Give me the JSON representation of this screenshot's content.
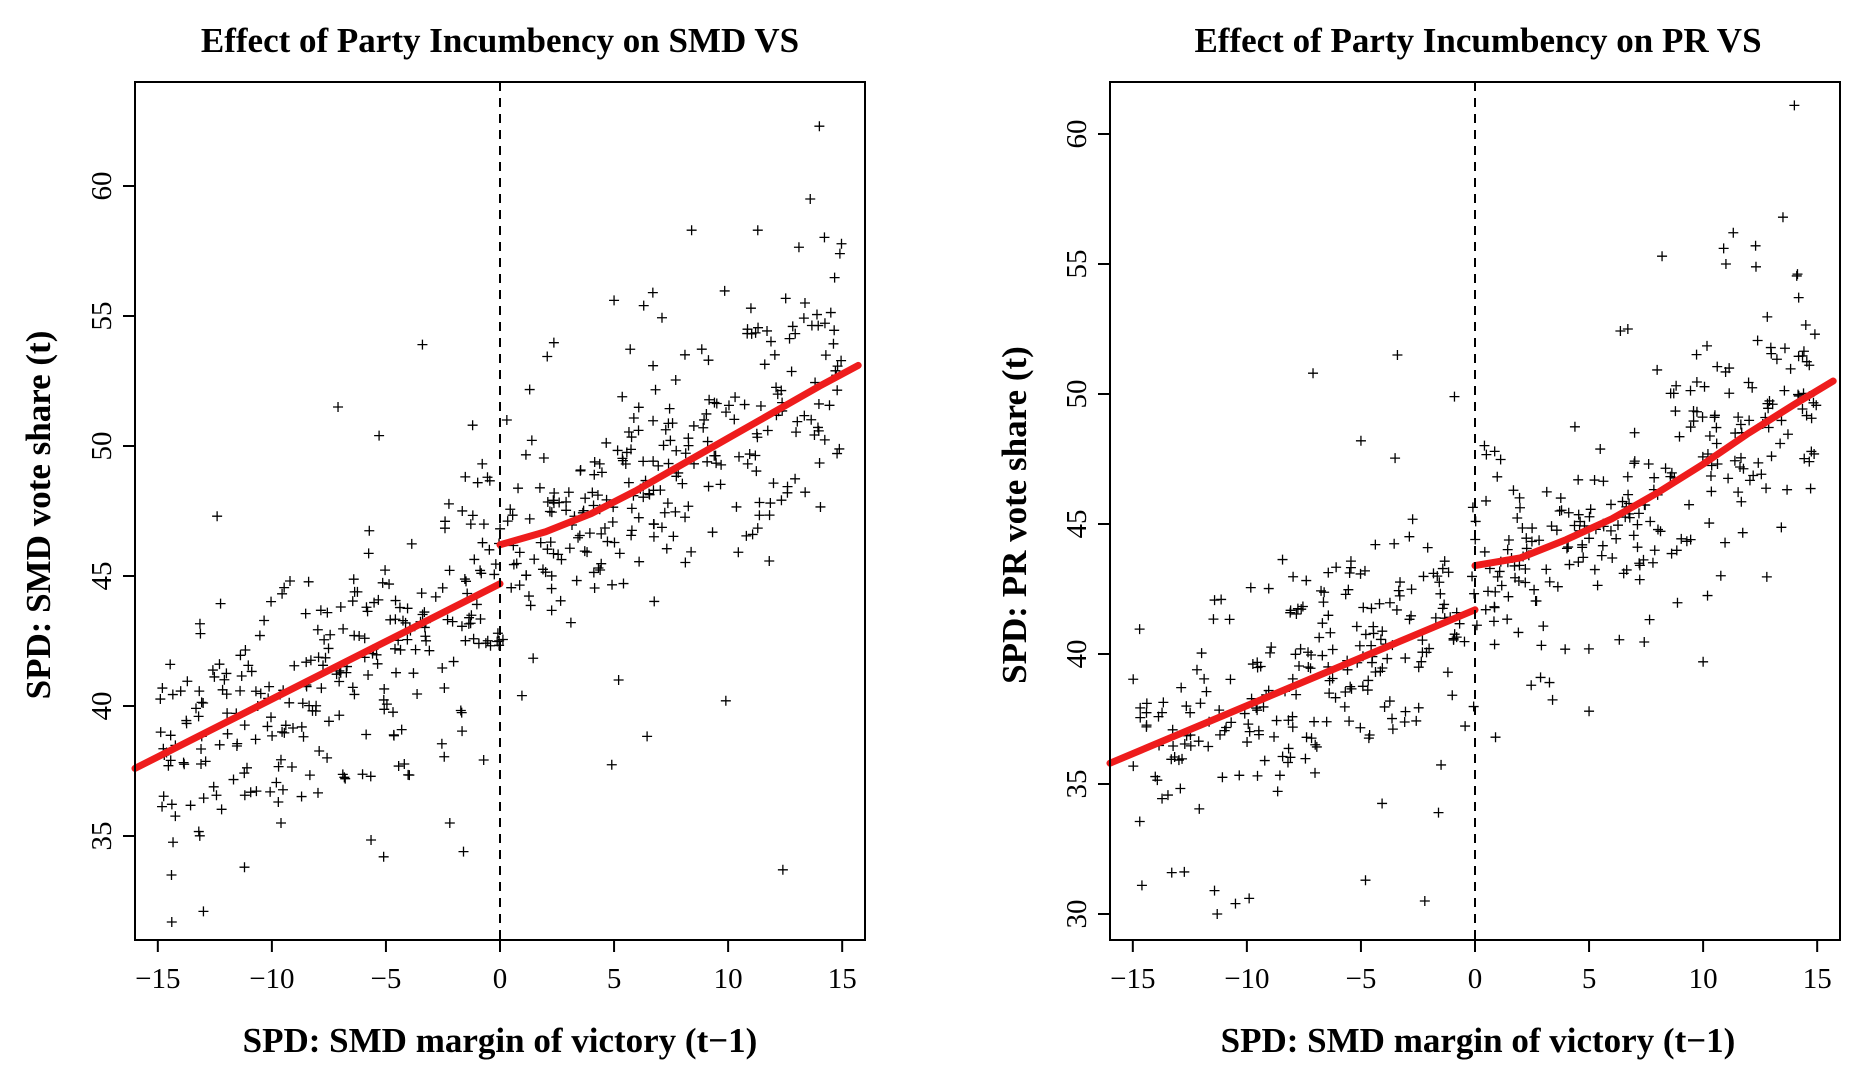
{
  "chart_data": [
    {
      "type": "scatter",
      "title": "Effect of Party Incumbency on SMD VS",
      "xlabel": "SPD: SMD margin of victory (t−1)",
      "ylabel": "SPD: SMD vote share (t)",
      "xlim": [
        -16,
        16
      ],
      "ylim": [
        31,
        64
      ],
      "xticks": [
        -15,
        -10,
        -5,
        0,
        5,
        10,
        15
      ],
      "xtick_labels": [
        "−15",
        "−10",
        "−5",
        "0",
        "5",
        "10",
        "15"
      ],
      "yticks": [
        35,
        40,
        45,
        50,
        55,
        60
      ],
      "ytick_labels": [
        "35",
        "40",
        "45",
        "50",
        "55",
        "60"
      ],
      "cutoff": 0,
      "marker_color": "#000000",
      "fit_color": "#ee1c1c",
      "fit_left": {
        "x": [
          -16,
          0
        ],
        "y": [
          37.6,
          44.7
        ]
      },
      "fit_right": {
        "x": [
          0,
          2,
          4,
          6,
          8,
          10,
          12,
          14,
          15.7
        ],
        "y": [
          46.2,
          46.7,
          47.4,
          48.3,
          49.3,
          50.3,
          51.3,
          52.3,
          53.1
        ]
      },
      "highlights": {
        "x": [
          -14.4,
          -13.0,
          -12.4,
          -11.2,
          -9.6,
          -7.1,
          -5.3,
          -5.1,
          -3.4,
          -2.2,
          -1.6,
          -1.2,
          0.3,
          5.0,
          5.2,
          6.3,
          6.7,
          8.4,
          9.9,
          11.0,
          11.3,
          12.4,
          12.6,
          13.6,
          14.0,
          14.9
        ],
        "y": [
          33.5,
          32.1,
          47.3,
          33.8,
          35.5,
          51.5,
          50.4,
          34.2,
          53.9,
          35.5,
          34.4,
          50.8,
          51.0,
          55.6,
          41.0,
          55.4,
          55.9,
          58.3,
          40.2,
          55.3,
          58.3,
          33.7,
          48.2,
          59.5,
          62.3,
          57.4
        ]
      },
      "points": {
        "n": 520,
        "seed": 12345,
        "xmin": -15,
        "xmax": 15,
        "y_sd": 2.4
      }
    },
    {
      "type": "scatter",
      "title": "Effect of Party Incumbency on PR VS",
      "xlabel": "SPD: SMD margin of victory (t−1)",
      "ylabel": "SPD: PR vote share (t)",
      "xlim": [
        -16,
        16
      ],
      "ylim": [
        29,
        62
      ],
      "xticks": [
        -15,
        -10,
        -5,
        0,
        5,
        10,
        15
      ],
      "xtick_labels": [
        "−15",
        "−10",
        "−5",
        "0",
        "5",
        "10",
        "15"
      ],
      "yticks": [
        30,
        35,
        40,
        45,
        50,
        55,
        60
      ],
      "ytick_labels": [
        "30",
        "35",
        "40",
        "45",
        "50",
        "55",
        "60"
      ],
      "cutoff": 0,
      "marker_color": "#000000",
      "fit_color": "#ee1c1c",
      "fit_left": {
        "x": [
          -16,
          0
        ],
        "y": [
          35.8,
          41.7
        ]
      },
      "fit_right": {
        "x": [
          0,
          2,
          4,
          6,
          8,
          10,
          12,
          14,
          15.7
        ],
        "y": [
          43.4,
          43.7,
          44.4,
          45.2,
          46.2,
          47.3,
          48.5,
          49.6,
          50.5
        ]
      },
      "highlights": {
        "x": [
          -14.6,
          -11.3,
          -9.9,
          -10.5,
          -7.1,
          -4.8,
          -5.0,
          -3.4,
          -2.2,
          -1.6,
          -0.9,
          0.9,
          5.0,
          6.7,
          8.2,
          10.0,
          10.9,
          11.0,
          12.3,
          13.5,
          14.0,
          14.9
        ],
        "y": [
          31.1,
          30.0,
          30.6,
          30.4,
          50.8,
          31.3,
          48.2,
          51.5,
          30.5,
          33.9,
          49.9,
          36.8,
          37.8,
          52.5,
          55.3,
          39.7,
          55.6,
          55.0,
          55.7,
          56.8,
          61.1,
          52.3
        ]
      },
      "points": {
        "n": 480,
        "seed": 67890,
        "xmin": -15,
        "xmax": 15,
        "y_sd": 2.3
      }
    }
  ]
}
